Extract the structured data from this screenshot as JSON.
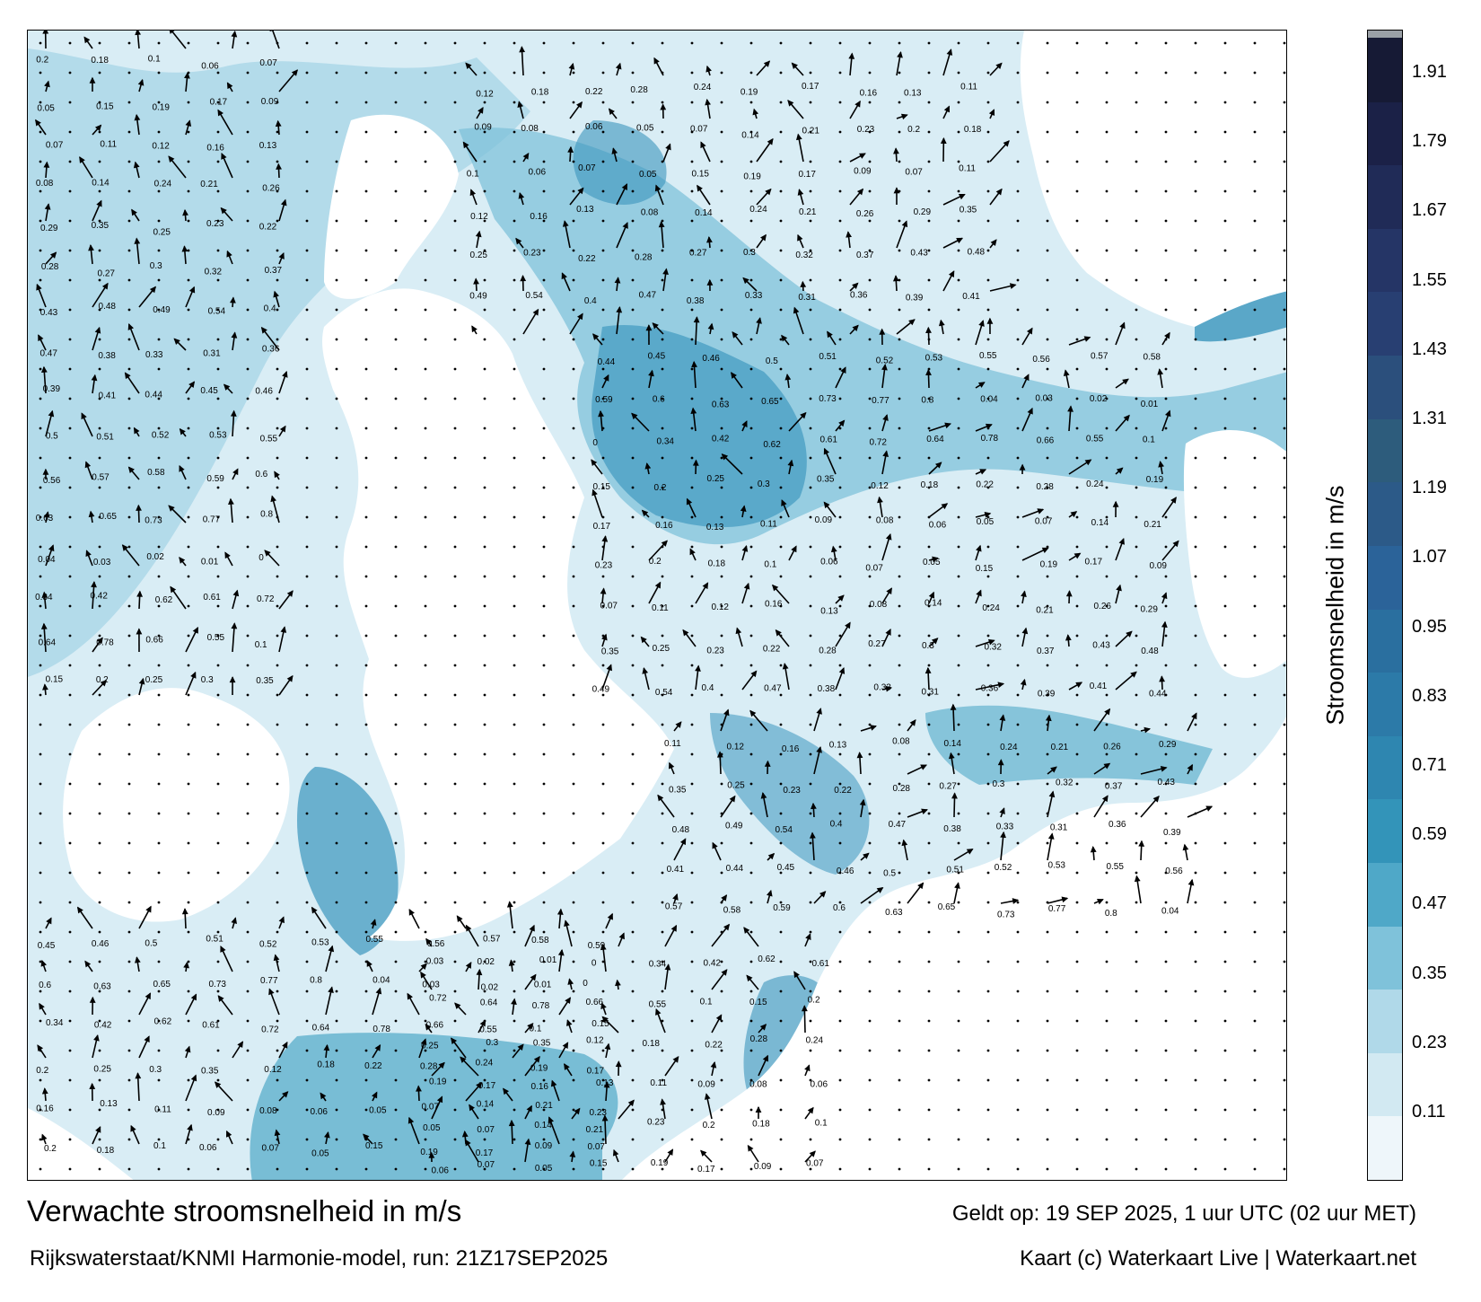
{
  "title": "Verwachte stroomsnelheid in m/s",
  "model_run": "Rijkswaterstaat/KNMI Harmonie-model, run: 21Z17SEP2025",
  "valid_time": "Geldt op: 19 SEP 2025, 1 uur UTC (02 uur MET)",
  "credit": "Kaart (c) Waterkaart Live | Waterkaart.net",
  "colorbar": {
    "label": "Stroomsnelheid in m/s",
    "ticks": [
      "0.11",
      "0.23",
      "0.35",
      "0.47",
      "0.59",
      "0.71",
      "0.83",
      "0.95",
      "1.07",
      "1.19",
      "1.31",
      "1.43",
      "1.55",
      "1.67",
      "1.79",
      "1.91"
    ],
    "colors": [
      "#eef6fa",
      "#d2e9f2",
      "#b0d9e9",
      "#7fc2da",
      "#4fa8c8",
      "#3394b9",
      "#2e86b0",
      "#2c7aa8",
      "#2a6f9f",
      "#2b6399",
      "#2c5a88",
      "#2d5c7c",
      "#2b4f7c",
      "#283f72",
      "#253566",
      "#202b57",
      "#1b2147",
      "#161a35",
      "#9aa0a6"
    ]
  },
  "colors": {
    "land": "#ffffff",
    "water_light": "#d9edf5",
    "water_mid": "#7fc2da",
    "water_dark": "#3a95bd"
  },
  "map_labels": [
    "0.2",
    "0.18",
    "0.1",
    "0.06",
    "0.07",
    "0.05",
    "0.15",
    "0.19",
    "0.17",
    "0.09",
    "0.07",
    "0.11",
    "0.12",
    "0.16",
    "0.13",
    "0.08",
    "0.14",
    "0.24",
    "0.21",
    "0.26",
    "0.29",
    "0.35",
    "0.25",
    "0.23",
    "0.22",
    "0.28",
    "0.27",
    "0.3",
    "0.32",
    "0.37",
    "0.43",
    "0.48",
    "0.49",
    "0.54",
    "0.4",
    "0.47",
    "0.38",
    "0.33",
    "0.31",
    "0.36",
    "0.39",
    "0.41",
    "0.44",
    "0.45",
    "0.46",
    "0.5",
    "0.51",
    "0.52",
    "0.53",
    "0.55",
    "0.56",
    "0.57",
    "0.58",
    "0.59",
    "0.6",
    "0.63",
    "0.65",
    "0.73",
    "0.77",
    "0.8",
    "0.04",
    "0.03",
    "0.02",
    "0.01",
    "0",
    "0.34",
    "0.42",
    "0.62",
    "0.61",
    "0.72",
    "0.64",
    "0.78",
    "0.66",
    "0.55",
    "0.1",
    "0.15",
    "0.2",
    "0.25",
    "0.3",
    "0.35",
    "0.12",
    "0.18",
    "0.22",
    "0.28",
    "0.24",
    "0.19",
    "0.17",
    "0.16",
    "0.13",
    "0.11",
    "0.09",
    "0.08",
    "0.06",
    "0.05",
    "0.07",
    "0.14",
    "0.21",
    "0.23"
  ]
}
